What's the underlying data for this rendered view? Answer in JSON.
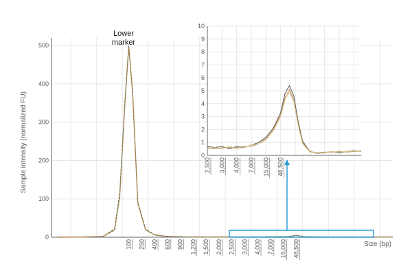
{
  "chart_data": [
    {
      "id": "main",
      "type": "line",
      "title": "",
      "ylabel": "Sample intensity (normalized FU)",
      "xlabel": "Size (bp)",
      "ylim": [
        0,
        520
      ],
      "yticks": [
        0,
        100,
        200,
        300,
        400,
        500
      ],
      "xtick_labels": [
        "100",
        "250",
        "400",
        "600",
        "900",
        "1,200",
        "1,500",
        "2,000",
        "2,500",
        "3,000",
        "4,000",
        "7,000",
        "15,000",
        "48,500"
      ],
      "xtick_positions": [
        0.5,
        1.5,
        2.5,
        3.5,
        4.5,
        5.5,
        6.5,
        7.5,
        8.5,
        9.5,
        10.5,
        11.5,
        12.5,
        13.5
      ],
      "xlim": [
        -5.5,
        21
      ],
      "grid": true,
      "annotation": "Lower marker",
      "series": [
        {
          "color": "#e07a30",
          "x": [
            -5,
            -3,
            -1.5,
            -0.6,
            -0.2,
            0.2,
            0.5,
            0.8,
            1.2,
            1.8,
            2.5,
            3.5,
            5,
            8,
            11,
            12.8,
            13.2,
            13.5,
            13.8,
            14.2,
            16,
            21
          ],
          "y": [
            0,
            0.5,
            2,
            20,
            110,
            350,
            498,
            380,
            90,
            20,
            6,
            2,
            0.6,
            0.4,
            0.8,
            1.5,
            3,
            5.2,
            3,
            1.2,
            0.5,
            0.3
          ]
        },
        {
          "color": "#2e8b57",
          "x": [
            -5,
            -3,
            -1.5,
            -0.6,
            -0.2,
            0.2,
            0.5,
            0.8,
            1.2,
            1.8,
            2.5,
            3.5,
            5,
            8,
            11,
            12.8,
            13.2,
            13.5,
            13.8,
            14.2,
            16,
            21
          ],
          "y": [
            0,
            0.5,
            2,
            22,
            115,
            355,
            500,
            375,
            92,
            21,
            6,
            2,
            0.6,
            0.4,
            0.8,
            1.5,
            3,
            5.0,
            3,
            1.2,
            0.5,
            0.3
          ]
        },
        {
          "color": "#a08060",
          "x": [
            -5,
            -3,
            -1.5,
            -0.6,
            -0.2,
            0.2,
            0.5,
            0.8,
            1.2,
            1.8,
            2.5,
            3.5,
            5,
            8,
            11,
            12.8,
            13.2,
            13.5,
            13.8,
            14.2,
            16,
            21
          ],
          "y": [
            0,
            0.5,
            2,
            18,
            105,
            345,
            495,
            370,
            88,
            19,
            6,
            2,
            0.6,
            0.4,
            0.8,
            1.5,
            3,
            4.8,
            3,
            1.2,
            0.5,
            0.3
          ]
        }
      ],
      "highlight": {
        "x": [
          8.3,
          19.5
        ],
        "y": [
          0,
          18
        ]
      }
    },
    {
      "id": "inset",
      "type": "line",
      "title": "",
      "xlabel": "",
      "ylabel": "",
      "ylim": [
        0,
        10
      ],
      "yticks": [
        0,
        1,
        2,
        3,
        4,
        5,
        6,
        7,
        8,
        9,
        10
      ],
      "xtick_labels": [
        "2,500",
        "3,000",
        "4,000",
        "7,000",
        "15,000",
        "48,500"
      ],
      "xtick_positions": [
        0,
        1,
        2,
        3,
        4,
        5
      ],
      "xlim": [
        0,
        10.5
      ],
      "grid": true,
      "series": [
        {
          "color": "#555555",
          "x": [
            0,
            0.5,
            1,
            1.5,
            2,
            2.5,
            3,
            3.5,
            4,
            4.5,
            5,
            5.3,
            5.6,
            5.9,
            6.2,
            6.5,
            7,
            7.5,
            8,
            8.5,
            9,
            9.5,
            10,
            10.5
          ],
          "y": [
            0.7,
            0.6,
            0.7,
            0.5,
            0.7,
            0.6,
            0.8,
            1.0,
            1.4,
            2.1,
            3.3,
            4.8,
            5.4,
            4.6,
            2.6,
            1.1,
            0.3,
            0.15,
            0.2,
            0.3,
            0.2,
            0.3,
            0.35,
            0.3
          ]
        },
        {
          "color": "#b89060",
          "x": [
            0,
            0.5,
            1,
            1.5,
            2,
            2.5,
            3,
            3.5,
            4,
            4.5,
            5,
            5.3,
            5.6,
            5.9,
            6.2,
            6.5,
            7,
            7.5,
            8,
            8.5,
            9,
            9.5,
            10,
            10.5
          ],
          "y": [
            0.6,
            0.5,
            0.6,
            0.6,
            0.6,
            0.7,
            0.7,
            0.9,
            1.3,
            2.0,
            3.1,
            4.5,
            5.1,
            4.3,
            2.4,
            1.0,
            0.3,
            0.2,
            0.25,
            0.25,
            0.3,
            0.25,
            0.3,
            0.35
          ]
        },
        {
          "color": "#d8c080",
          "x": [
            0,
            0.5,
            1,
            1.5,
            2,
            2.5,
            3,
            3.5,
            4,
            4.5,
            5,
            5.3,
            5.6,
            5.9,
            6.2,
            6.5,
            7,
            7.5,
            8,
            8.5,
            9,
            9.5,
            10,
            10.5
          ],
          "y": [
            0.5,
            0.6,
            0.5,
            0.7,
            0.5,
            0.6,
            0.8,
            0.9,
            1.2,
            1.9,
            3.0,
            4.3,
            4.9,
            4.2,
            2.3,
            0.9,
            0.25,
            0.2,
            0.2,
            0.3,
            0.25,
            0.3,
            0.3,
            0.3
          ]
        }
      ]
    }
  ],
  "colors": {
    "highlight": "#2a9ad6",
    "grid": "#e6e6e6",
    "axis": "#666666"
  }
}
